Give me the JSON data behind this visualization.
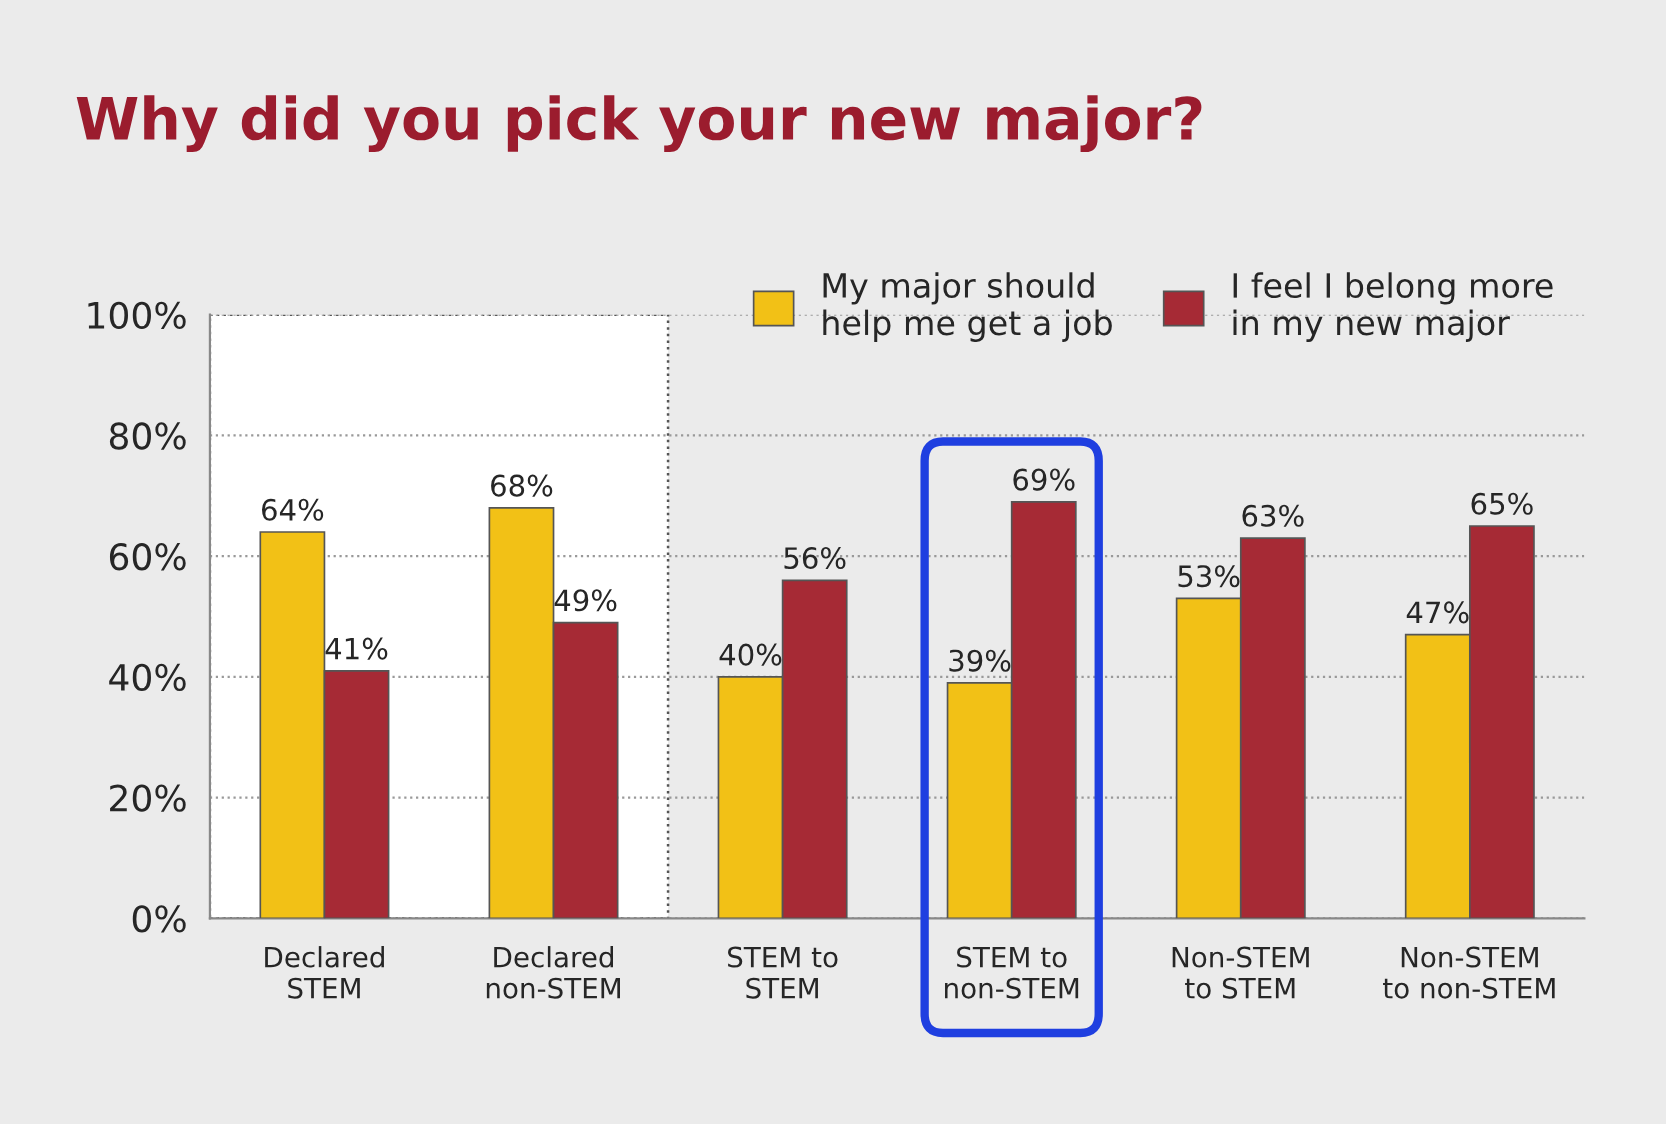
{
  "chart_data": {
    "type": "bar",
    "title": "Why did you pick your new major?",
    "categories": [
      "Declared\nSTEM",
      "Declared\nnon-STEM",
      "STEM to\nSTEM",
      "STEM to\nnon-STEM",
      "Non-STEM\nto STEM",
      "Non-STEM\nto non-STEM"
    ],
    "series": [
      {
        "name": "My major should\nhelp me get a job",
        "color": "#f2c116",
        "values": [
          64,
          68,
          40,
          39,
          53,
          47
        ],
        "value_labels": [
          "64%",
          "68%",
          "40%",
          "39%",
          "53%",
          "47%"
        ]
      },
      {
        "name": "I feel I belong more\nin my new major",
        "color": "#a62a35",
        "values": [
          41,
          49,
          56,
          69,
          63,
          65
        ],
        "value_labels": [
          "41%",
          "49%",
          "56%",
          "69%",
          "63%",
          "65%"
        ]
      }
    ],
    "ylim": [
      0,
      100
    ],
    "yticks": [
      {
        "value": 0,
        "label": "0%"
      },
      {
        "value": 20,
        "label": "20%"
      },
      {
        "value": 40,
        "label": "40%"
      },
      {
        "value": 60,
        "label": "60%"
      },
      {
        "value": 80,
        "label": "80%"
      },
      {
        "value": 100,
        "label": "100%"
      }
    ],
    "grid": "y",
    "legend": "top right"
  }
}
